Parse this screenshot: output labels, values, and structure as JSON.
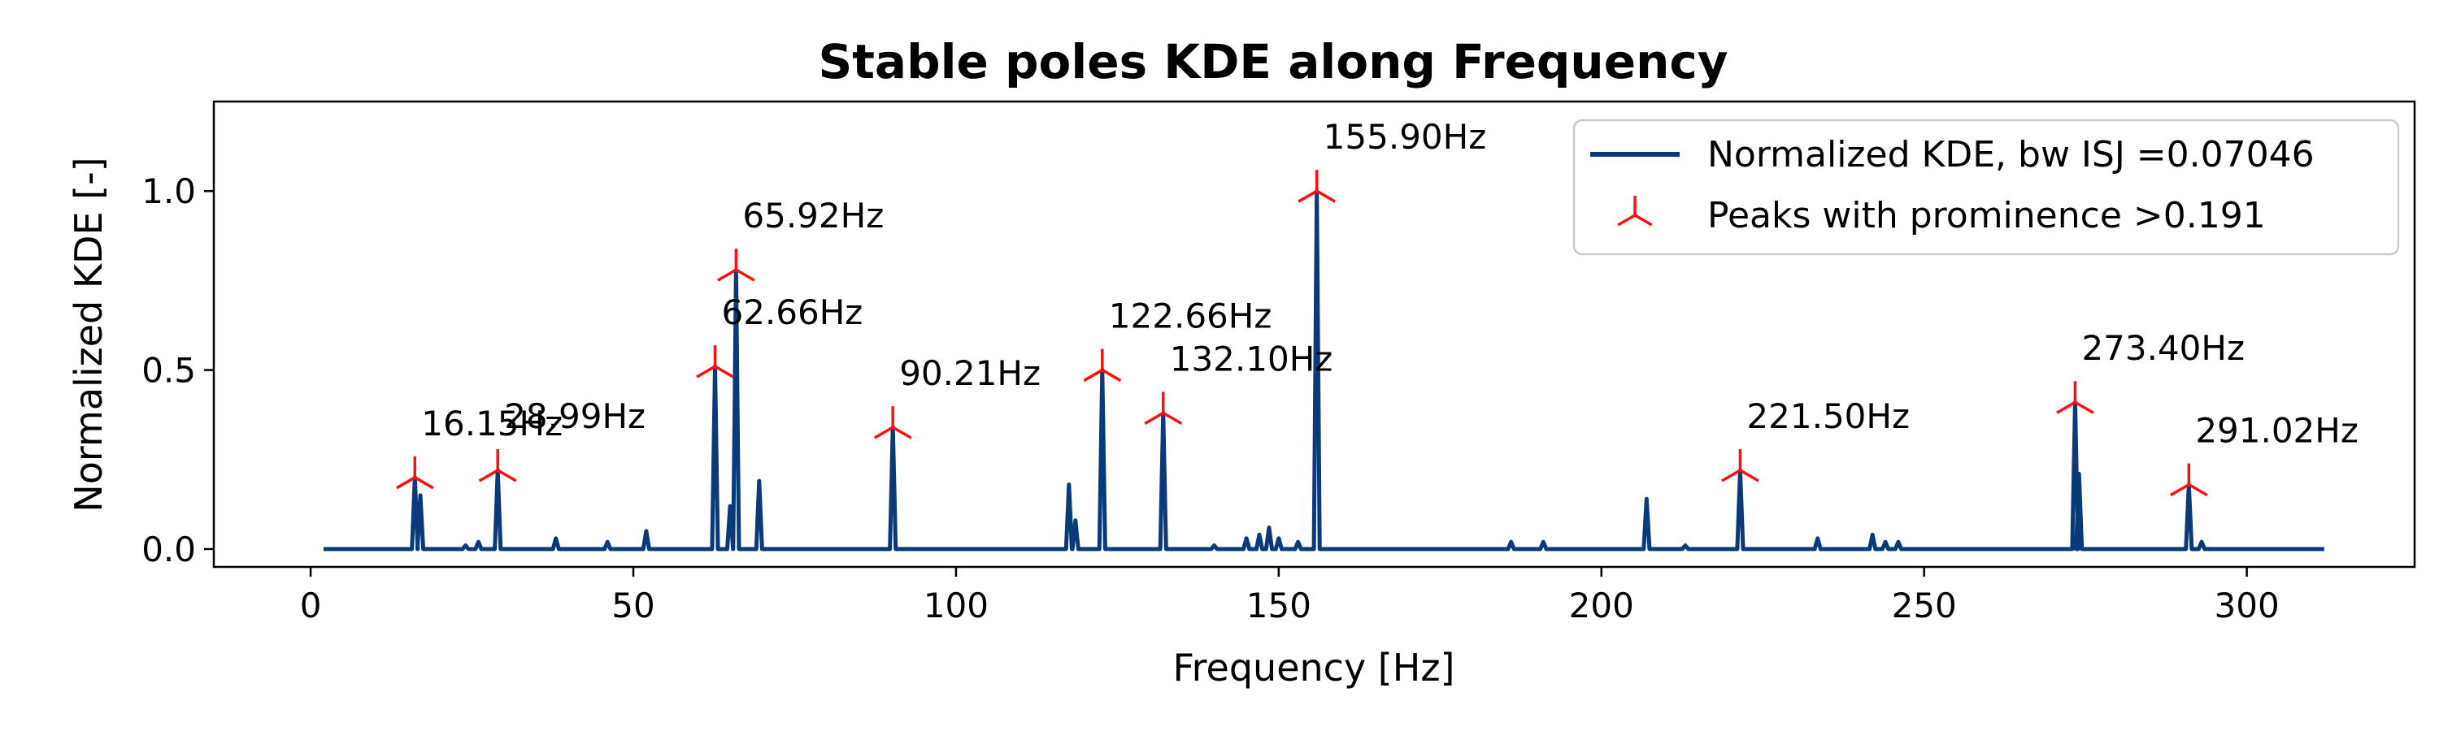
{
  "chart_data": {
    "type": "line",
    "title": "Stable poles KDE along Frequency",
    "xlabel": "Frequency [Hz]",
    "ylabel": "Normalized KDE [-]",
    "xlim": [
      -15,
      326
    ],
    "ylim": [
      -0.05,
      1.25
    ],
    "xticks": [
      0,
      50,
      100,
      150,
      200,
      250,
      300
    ],
    "yticks": [
      0.0,
      0.5,
      1.0
    ],
    "xtick_labels": [
      "0",
      "50",
      "100",
      "150",
      "200",
      "250",
      "300"
    ],
    "ytick_labels": [
      "0.0",
      "0.5",
      "1.0"
    ],
    "grid": false,
    "legend_position": "top-right",
    "colors": {
      "line": "#0a3a7a",
      "peaks": "#ff1010"
    },
    "series": [
      {
        "name": "Normalized KDE, bw ISJ =0.07046",
        "baseline": 0.0,
        "x_range": [
          2,
          312
        ],
        "spikes": [
          [
            16.15,
            0.2
          ],
          [
            17.0,
            0.15
          ],
          [
            24.0,
            0.01
          ],
          [
            26.0,
            0.02
          ],
          [
            28.99,
            0.22
          ],
          [
            38.0,
            0.03
          ],
          [
            46.0,
            0.02
          ],
          [
            52.0,
            0.05
          ],
          [
            62.66,
            0.51
          ],
          [
            65.0,
            0.12
          ],
          [
            65.92,
            0.78
          ],
          [
            69.5,
            0.19
          ],
          [
            90.21,
            0.34
          ],
          [
            117.5,
            0.18
          ],
          [
            118.5,
            0.08
          ],
          [
            122.66,
            0.5
          ],
          [
            132.1,
            0.38
          ],
          [
            140.0,
            0.01
          ],
          [
            145.0,
            0.03
          ],
          [
            147.0,
            0.04
          ],
          [
            148.5,
            0.06
          ],
          [
            150.0,
            0.03
          ],
          [
            153.0,
            0.02
          ],
          [
            155.9,
            1.0
          ],
          [
            186.0,
            0.02
          ],
          [
            191.0,
            0.02
          ],
          [
            207.0,
            0.14
          ],
          [
            213.0,
            0.01
          ],
          [
            221.5,
            0.22
          ],
          [
            233.5,
            0.03
          ],
          [
            242.0,
            0.04
          ],
          [
            244.0,
            0.02
          ],
          [
            246.0,
            0.02
          ],
          [
            273.4,
            0.41
          ],
          [
            274.0,
            0.21
          ],
          [
            291.02,
            0.18
          ],
          [
            293.0,
            0.02
          ]
        ]
      },
      {
        "name": "Peaks with prominence >0.191",
        "peaks": [
          {
            "x": 16.15,
            "y": 0.2,
            "label": "16.15Hz"
          },
          {
            "x": 28.99,
            "y": 0.22,
            "label": "28.99Hz"
          },
          {
            "x": 62.66,
            "y": 0.51,
            "label": "62.66Hz"
          },
          {
            "x": 65.92,
            "y": 0.78,
            "label": "65.92Hz"
          },
          {
            "x": 90.21,
            "y": 0.34,
            "label": "90.21Hz"
          },
          {
            "x": 122.66,
            "y": 0.5,
            "label": "122.66Hz"
          },
          {
            "x": 132.1,
            "y": 0.38,
            "label": "132.10Hz"
          },
          {
            "x": 155.9,
            "y": 1.0,
            "label": "155.90Hz"
          },
          {
            "x": 221.5,
            "y": 0.22,
            "label": "221.50Hz"
          },
          {
            "x": 273.4,
            "y": 0.41,
            "label": "273.40Hz"
          },
          {
            "x": 291.02,
            "y": 0.18,
            "label": "291.02Hz"
          }
        ]
      }
    ]
  }
}
